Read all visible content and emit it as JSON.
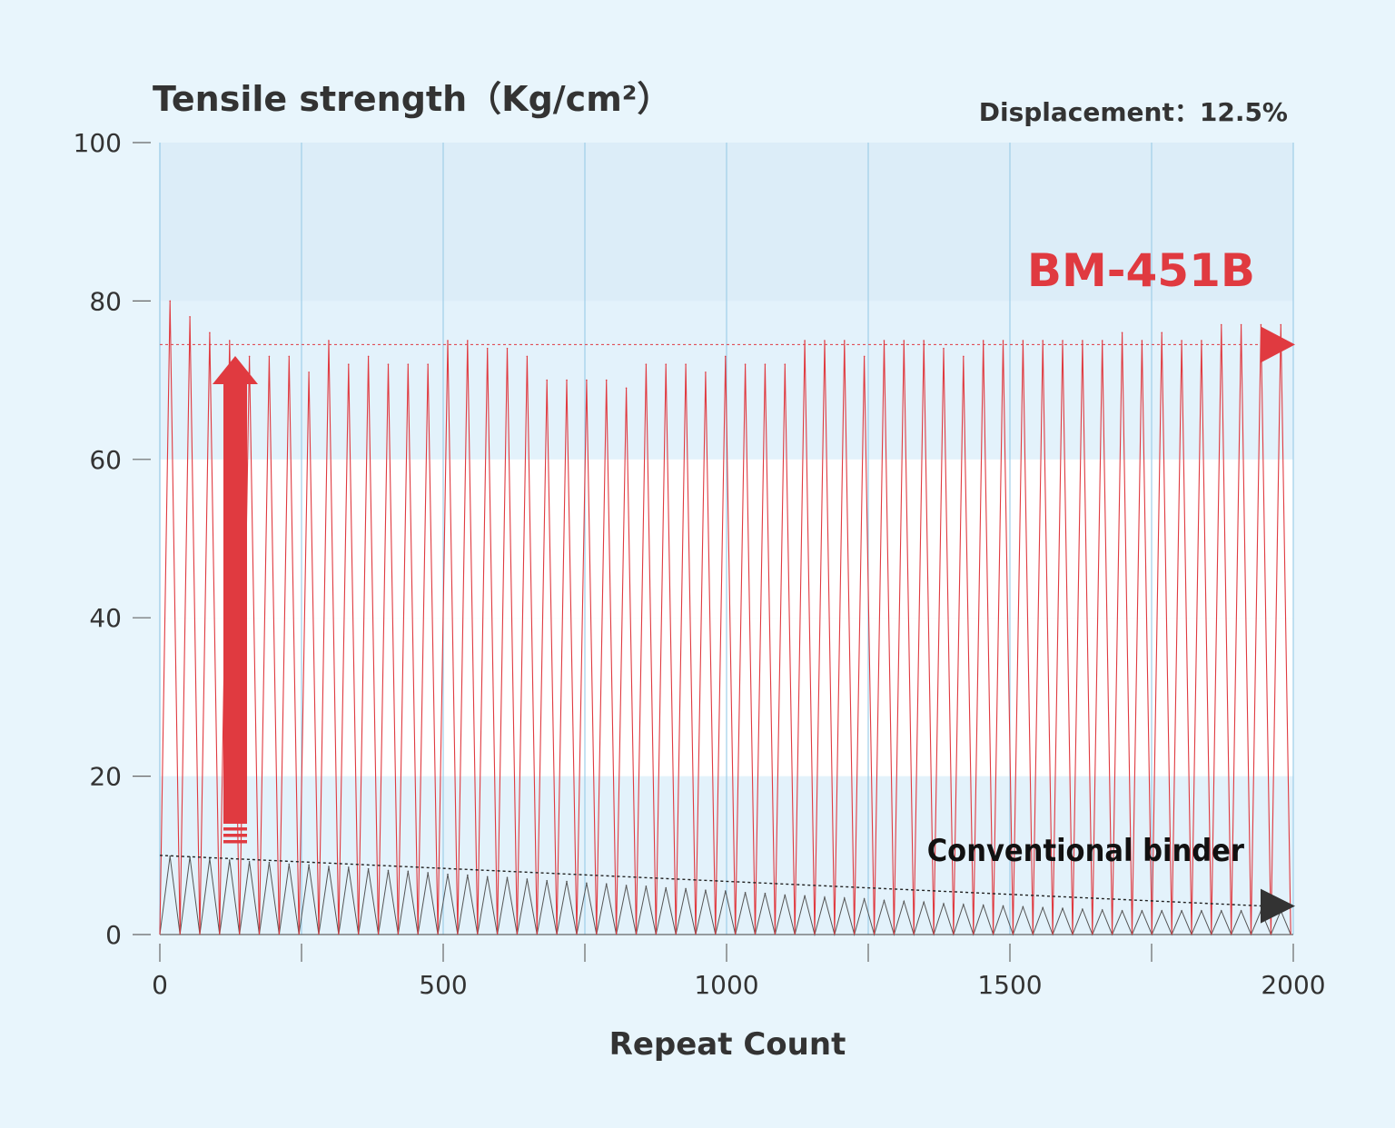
{
  "chart_data": {
    "type": "line",
    "ylabel": "Tensile strength（Kg/cm²）",
    "xlabel": "Repeat Count",
    "annotation": "Displacement：12.5%",
    "xlim": [
      0,
      2000
    ],
    "ylim": [
      0,
      100
    ],
    "x_ticks": [
      "0",
      "500",
      "1000",
      "1500",
      "2000"
    ],
    "y_ticks": [
      "0",
      "20",
      "40",
      "60",
      "80",
      "100"
    ],
    "x_tick_values": [
      0,
      500,
      1000,
      1500,
      2000
    ],
    "x_minor_tick_values": [
      250,
      750,
      1250,
      1750
    ],
    "y_tick_values": [
      0,
      20,
      40,
      60,
      80,
      100
    ],
    "band_ranges": [
      [
        0,
        20,
        "light"
      ],
      [
        20,
        40,
        "white"
      ],
      [
        40,
        60,
        "white"
      ],
      [
        60,
        80,
        "light"
      ],
      [
        80,
        100,
        "dark"
      ]
    ],
    "series": [
      {
        "name": "BM-451B",
        "color": "#e03a40",
        "cycle_peaks_x": [
          18,
          53,
          88,
          123,
          158,
          193,
          228,
          263,
          298,
          333,
          368,
          403,
          438,
          473,
          508,
          543,
          578,
          613,
          648,
          683,
          718,
          753,
          788,
          823,
          858,
          893,
          928,
          963,
          998,
          1033,
          1068,
          1103,
          1138,
          1173,
          1208,
          1243,
          1278,
          1313,
          1348,
          1383,
          1418,
          1453,
          1488,
          1523,
          1558,
          1593,
          1628,
          1663,
          1698,
          1733,
          1768,
          1803,
          1838,
          1873,
          1908,
          1943,
          1978
        ],
        "cycle_peaks_y": [
          80,
          78,
          76,
          75,
          73,
          73,
          73,
          71,
          75,
          72,
          73,
          72,
          72,
          72,
          75,
          75,
          74,
          74,
          73,
          70,
          70,
          70,
          70,
          69,
          72,
          72,
          72,
          71,
          73,
          72,
          72,
          72,
          75,
          75,
          75,
          73,
          75,
          75,
          75,
          74,
          73,
          75,
          75,
          75,
          75,
          75,
          75,
          75,
          76,
          75,
          76,
          75,
          75,
          77,
          77,
          77,
          77
        ],
        "reference_level": 74.5
      },
      {
        "name": "Conventional binder",
        "color": "#555555",
        "cycle_peaks_x": [
          18,
          53,
          88,
          123,
          158,
          193,
          228,
          263,
          298,
          333,
          368,
          403,
          438,
          473,
          508,
          543,
          578,
          613,
          648,
          683,
          718,
          753,
          788,
          823,
          858,
          893,
          928,
          963,
          998,
          1033,
          1068,
          1103,
          1138,
          1173,
          1208,
          1243,
          1278,
          1313,
          1348,
          1383,
          1418,
          1453,
          1488,
          1523,
          1558,
          1593,
          1628,
          1663,
          1698,
          1733,
          1768,
          1803,
          1838,
          1873,
          1908,
          1943,
          1978
        ],
        "cycle_peaks_y": [
          9.9,
          9.8,
          9.6,
          9.4,
          9.2,
          9.1,
          8.9,
          8.8,
          8.6,
          8.5,
          8.3,
          8.1,
          8.0,
          7.8,
          7.6,
          7.5,
          7.3,
          7.2,
          7.0,
          6.8,
          6.7,
          6.5,
          6.4,
          6.2,
          6.1,
          5.9,
          5.8,
          5.6,
          5.5,
          5.3,
          5.2,
          5.0,
          4.9,
          4.7,
          4.6,
          4.5,
          4.3,
          4.2,
          4.1,
          3.9,
          3.8,
          3.7,
          3.6,
          3.5,
          3.4,
          3.3,
          3.2,
          3.1,
          3.0,
          3.0,
          3.0,
          3.0,
          3.0,
          3.0,
          3.0,
          3.0,
          3.0
        ],
        "trend_start": 10,
        "trend_end": 3.6
      }
    ],
    "colors": {
      "background": "#e8f5fc",
      "band_light": "#e3f2fb",
      "band_dark": "#dcedf8",
      "band_white": "#ffffff",
      "grid": "#9fcfe8",
      "axis": "#666666",
      "accent": "#e03a40",
      "dark_marker": "#333333"
    }
  }
}
